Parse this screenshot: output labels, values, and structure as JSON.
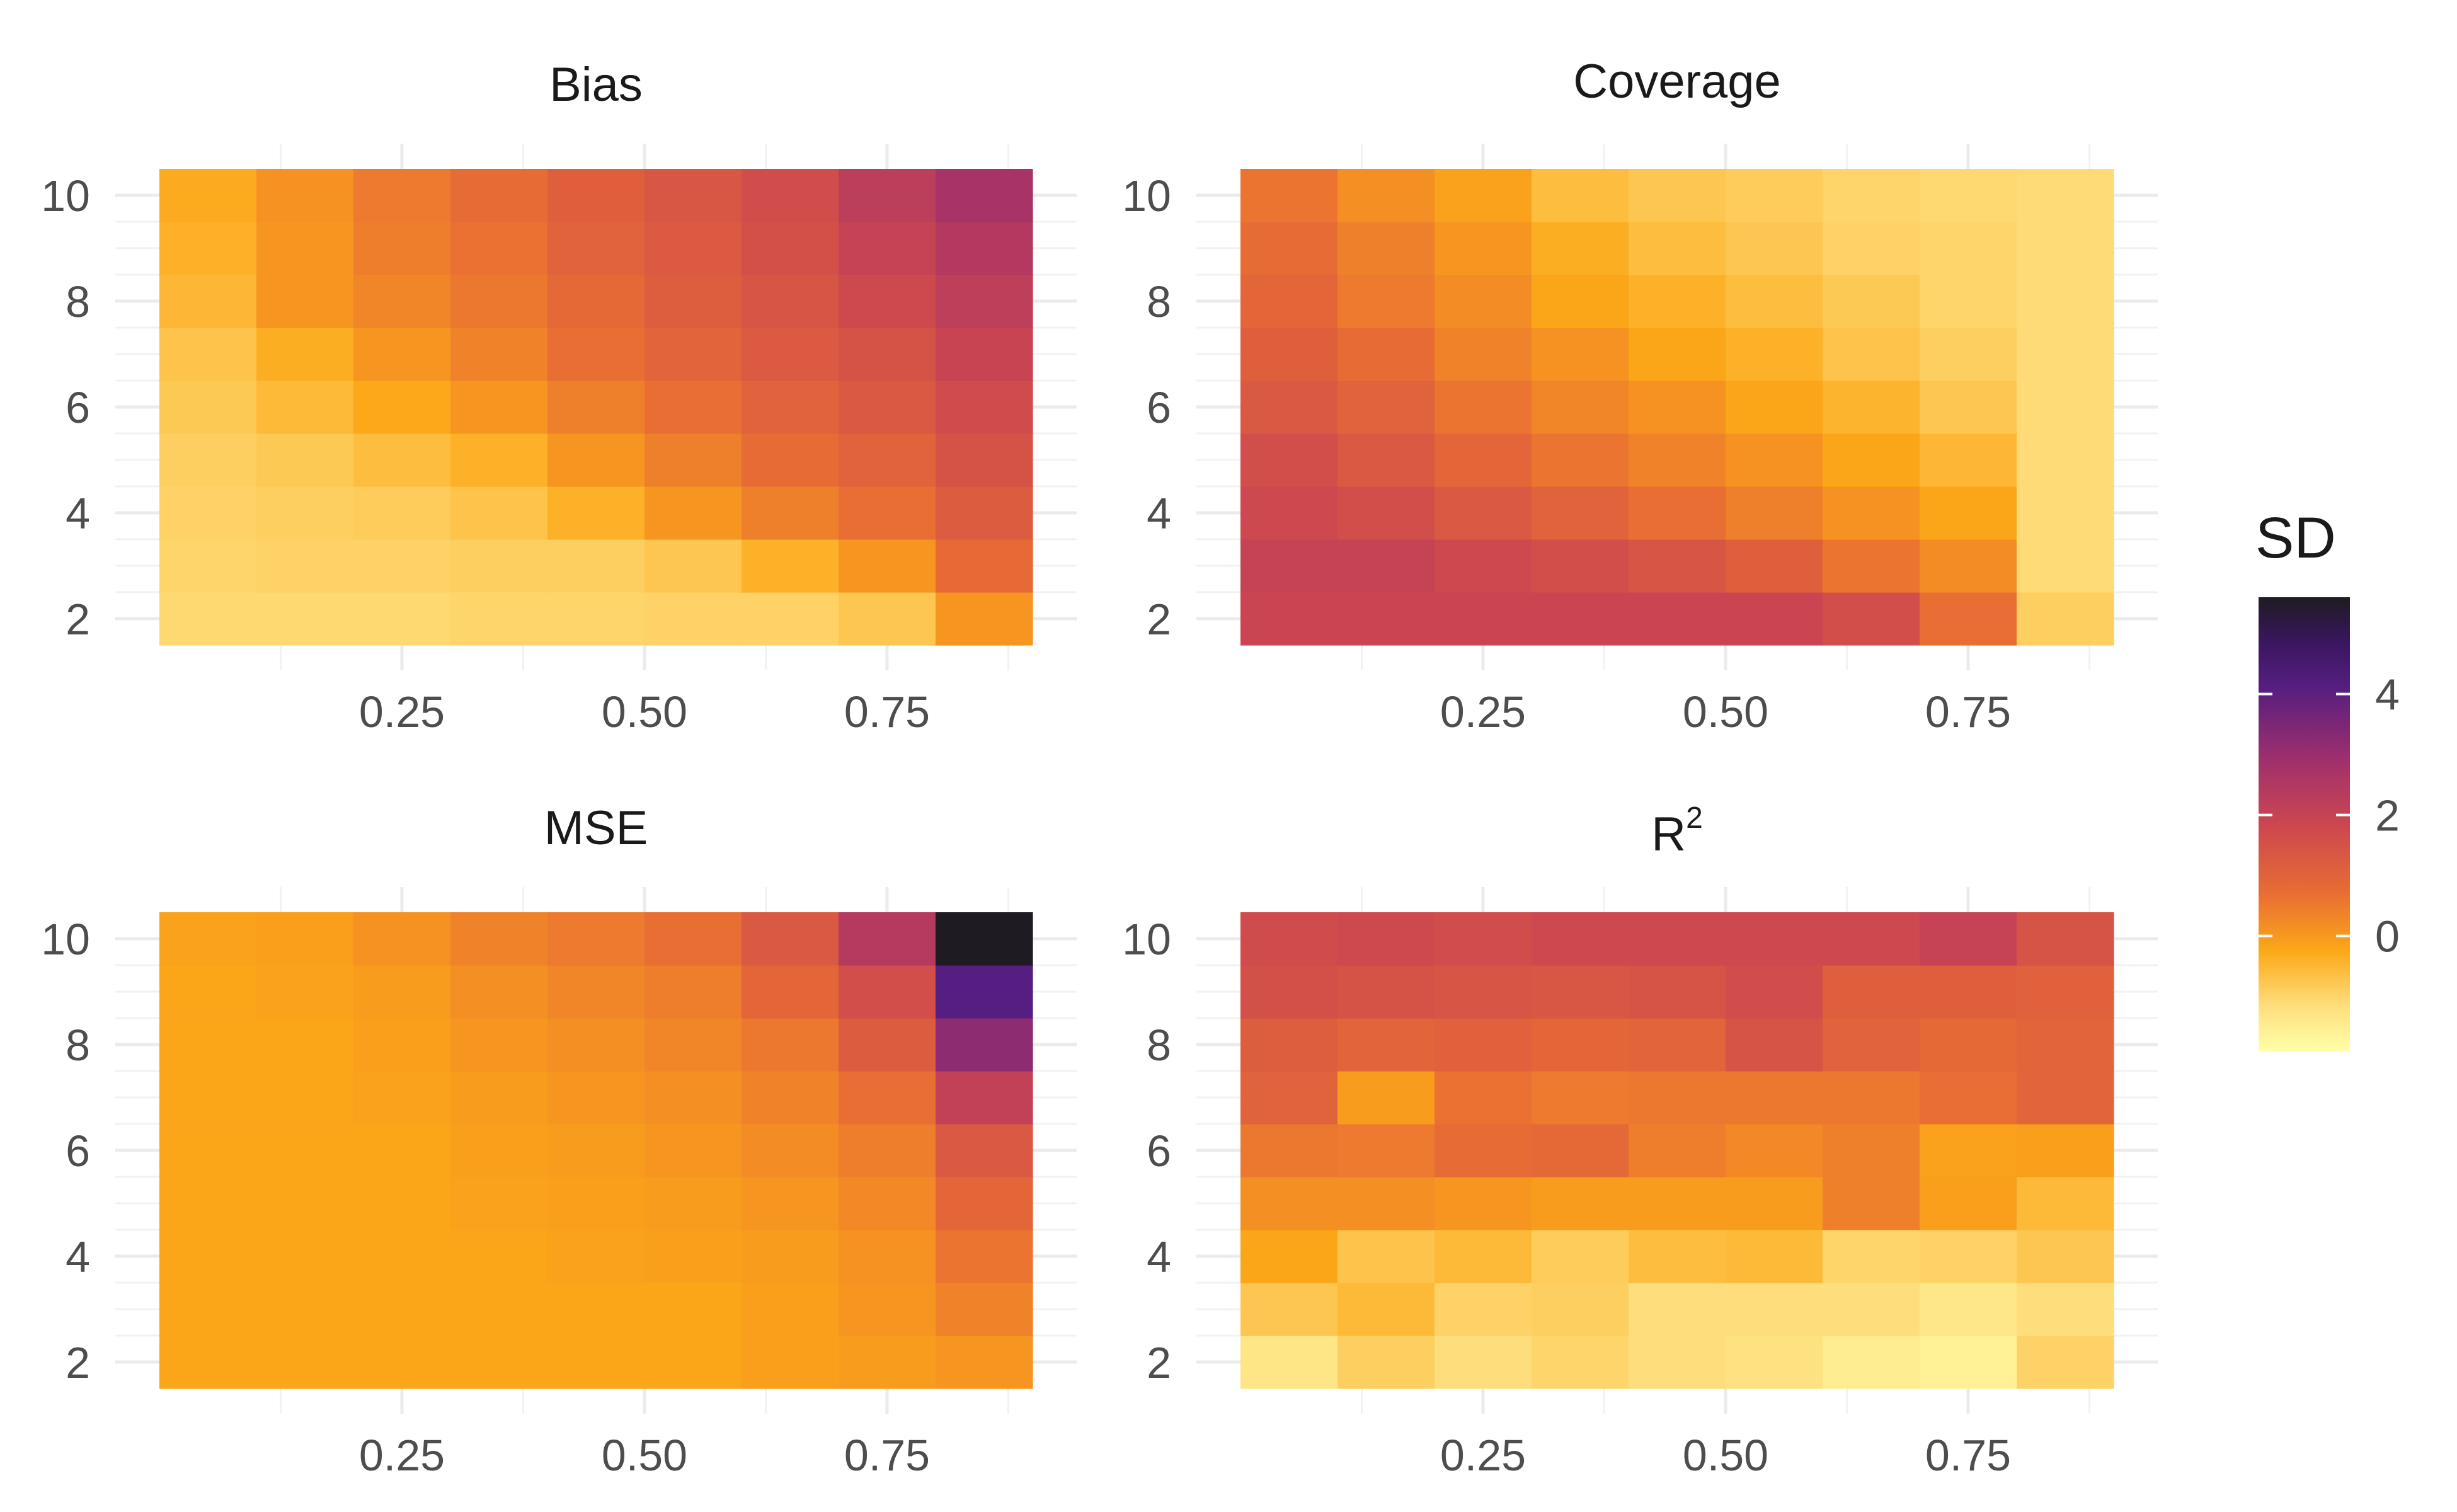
{
  "chart_data": [
    {
      "type": "heatmap",
      "title": "Bias",
      "x": [
        0.05,
        0.15,
        0.25,
        0.35,
        0.45,
        0.55,
        0.65,
        0.75,
        0.85
      ],
      "y": [
        2,
        3,
        4,
        5,
        6,
        7,
        8,
        9,
        10
      ],
      "x_ticks": [
        "0.25",
        "0.50",
        "0.75"
      ],
      "y_ticks": [
        "2",
        "4",
        "6",
        "8",
        "10"
      ],
      "values": [
        [
          -1.05,
          -1.05,
          -1.05,
          -1.0,
          -1.0,
          -0.95,
          -0.95,
          -0.75,
          0.05
        ],
        [
          -1.0,
          -0.95,
          -0.95,
          -0.9,
          -0.9,
          -0.75,
          -0.4,
          0.05,
          0.8
        ],
        [
          -0.95,
          -0.9,
          -0.85,
          -0.7,
          -0.4,
          0.05,
          0.4,
          0.7,
          1.2
        ],
        [
          -0.9,
          -0.8,
          -0.6,
          -0.4,
          0.05,
          0.4,
          0.75,
          1.0,
          1.5
        ],
        [
          -0.8,
          -0.55,
          -0.25,
          0.05,
          0.4,
          0.7,
          1.0,
          1.3,
          1.7
        ],
        [
          -0.7,
          -0.35,
          0.05,
          0.35,
          0.7,
          0.95,
          1.25,
          1.5,
          1.95
        ],
        [
          -0.5,
          0.05,
          0.3,
          0.55,
          0.85,
          1.15,
          1.4,
          1.75,
          2.2
        ],
        [
          -0.4,
          0.05,
          0.45,
          0.65,
          1.0,
          1.25,
          1.55,
          2.0,
          2.45
        ],
        [
          -0.3,
          0.1,
          0.5,
          0.75,
          1.1,
          1.35,
          1.65,
          2.25,
          2.7
        ]
      ]
    },
    {
      "type": "heatmap",
      "title": "Coverage",
      "x": [
        0.05,
        0.15,
        0.25,
        0.35,
        0.45,
        0.55,
        0.65,
        0.75,
        0.85
      ],
      "y": [
        2,
        3,
        4,
        5,
        6,
        7,
        8,
        9,
        10
      ],
      "x_ticks": [
        "0.25",
        "0.50",
        "0.75"
      ],
      "y_ticks": [
        "2",
        "4",
        "6",
        "8",
        "10"
      ],
      "values": [
        [
          1.9,
          1.9,
          1.9,
          1.9,
          1.9,
          1.9,
          1.6,
          0.7,
          -0.9
        ],
        [
          2.0,
          2.0,
          1.8,
          1.6,
          1.4,
          1.1,
          0.6,
          0.2,
          -1.1
        ],
        [
          1.8,
          1.6,
          1.3,
          1.0,
          0.7,
          0.4,
          0.1,
          -0.2,
          -1.1
        ],
        [
          1.6,
          1.3,
          0.9,
          0.6,
          0.35,
          0.1,
          -0.2,
          -0.5,
          -1.1
        ],
        [
          1.3,
          1.0,
          0.6,
          0.3,
          0.1,
          -0.2,
          -0.45,
          -0.75,
          -1.1
        ],
        [
          1.1,
          0.75,
          0.35,
          0.1,
          -0.2,
          -0.4,
          -0.7,
          -0.9,
          -1.1
        ],
        [
          0.9,
          0.5,
          0.2,
          -0.2,
          -0.4,
          -0.6,
          -0.8,
          -1.0,
          -1.1
        ],
        [
          0.75,
          0.4,
          0.05,
          -0.35,
          -0.6,
          -0.75,
          -0.95,
          -1.0,
          -1.1
        ],
        [
          0.6,
          0.15,
          -0.15,
          -0.6,
          -0.75,
          -0.85,
          -1.0,
          -1.05,
          -1.1
        ]
      ]
    },
    {
      "type": "heatmap",
      "title": "MSE",
      "x": [
        0.05,
        0.15,
        0.25,
        0.35,
        0.45,
        0.55,
        0.65,
        0.75,
        0.85
      ],
      "y": [
        2,
        3,
        4,
        5,
        6,
        7,
        8,
        9,
        10
      ],
      "x_ticks": [
        "0.25",
        "0.50",
        "0.75"
      ],
      "y_ticks": [
        "2",
        "4",
        "6",
        "8",
        "10"
      ],
      "values": [
        [
          -0.2,
          -0.2,
          -0.2,
          -0.2,
          -0.2,
          -0.2,
          -0.1,
          -0.05,
          0.05
        ],
        [
          -0.2,
          -0.2,
          -0.2,
          -0.2,
          -0.2,
          -0.2,
          -0.1,
          0.05,
          0.35
        ],
        [
          -0.2,
          -0.2,
          -0.2,
          -0.2,
          -0.15,
          -0.1,
          -0.05,
          0.1,
          0.6
        ],
        [
          -0.2,
          -0.2,
          -0.2,
          -0.15,
          -0.1,
          -0.05,
          0.05,
          0.25,
          0.9
        ],
        [
          -0.2,
          -0.2,
          -0.2,
          -0.1,
          -0.05,
          0.05,
          0.2,
          0.45,
          1.3
        ],
        [
          -0.2,
          -0.2,
          -0.15,
          -0.05,
          0.05,
          0.15,
          0.35,
          0.7,
          2.1
        ],
        [
          -0.2,
          -0.2,
          -0.1,
          0.05,
          0.15,
          0.3,
          0.55,
          1.2,
          3.2
        ],
        [
          -0.2,
          -0.15,
          -0.05,
          0.15,
          0.3,
          0.45,
          0.9,
          1.6,
          4.1
        ],
        [
          -0.15,
          -0.1,
          0.1,
          0.35,
          0.5,
          0.7,
          1.3,
          2.4,
          5.6
        ]
      ]
    },
    {
      "type": "heatmap",
      "title": "R²",
      "x": [
        0.05,
        0.15,
        0.25,
        0.35,
        0.45,
        0.55,
        0.65,
        0.75,
        0.85
      ],
      "y": [
        2,
        3,
        4,
        5,
        6,
        7,
        8,
        9,
        10
      ],
      "x_ticks": [
        "0.25",
        "0.50",
        "0.75"
      ],
      "y_ticks": [
        "2",
        "4",
        "6",
        "8",
        "10"
      ],
      "values": [
        [
          -1.3,
          -0.9,
          -1.15,
          -1.0,
          -1.15,
          -1.25,
          -1.5,
          -1.6,
          -0.95
        ],
        [
          -0.75,
          -0.55,
          -0.95,
          -0.9,
          -1.15,
          -1.15,
          -1.15,
          -1.35,
          -1.15
        ],
        [
          -0.2,
          -0.7,
          -0.55,
          -0.85,
          -0.6,
          -0.55,
          -1.0,
          -0.95,
          -0.75
        ],
        [
          0.15,
          0.15,
          0.05,
          -0.05,
          -0.05,
          -0.05,
          0.4,
          -0.1,
          -0.55
        ],
        [
          0.55,
          0.5,
          0.75,
          0.85,
          0.45,
          0.25,
          0.4,
          -0.15,
          -0.1
        ],
        [
          1.0,
          -0.05,
          0.65,
          0.5,
          0.55,
          0.55,
          0.55,
          0.7,
          0.95
        ],
        [
          1.15,
          0.95,
          1.05,
          0.9,
          0.95,
          1.45,
          1.0,
          0.85,
          0.95
        ],
        [
          1.55,
          1.5,
          1.4,
          1.35,
          1.45,
          1.65,
          1.1,
          1.1,
          1.05
        ],
        [
          1.7,
          1.75,
          1.65,
          1.8,
          1.8,
          1.8,
          1.8,
          2.0,
          1.45
        ]
      ]
    }
  ],
  "legend": {
    "title": "SD",
    "type": "continuous colorbar",
    "placement": "right",
    "range": [
      -1.9,
      5.6
    ],
    "ticks": [
      0,
      2,
      4
    ],
    "tick_labels": [
      "0",
      "2",
      "4"
    ],
    "colormap": "inferno (reversed)"
  }
}
